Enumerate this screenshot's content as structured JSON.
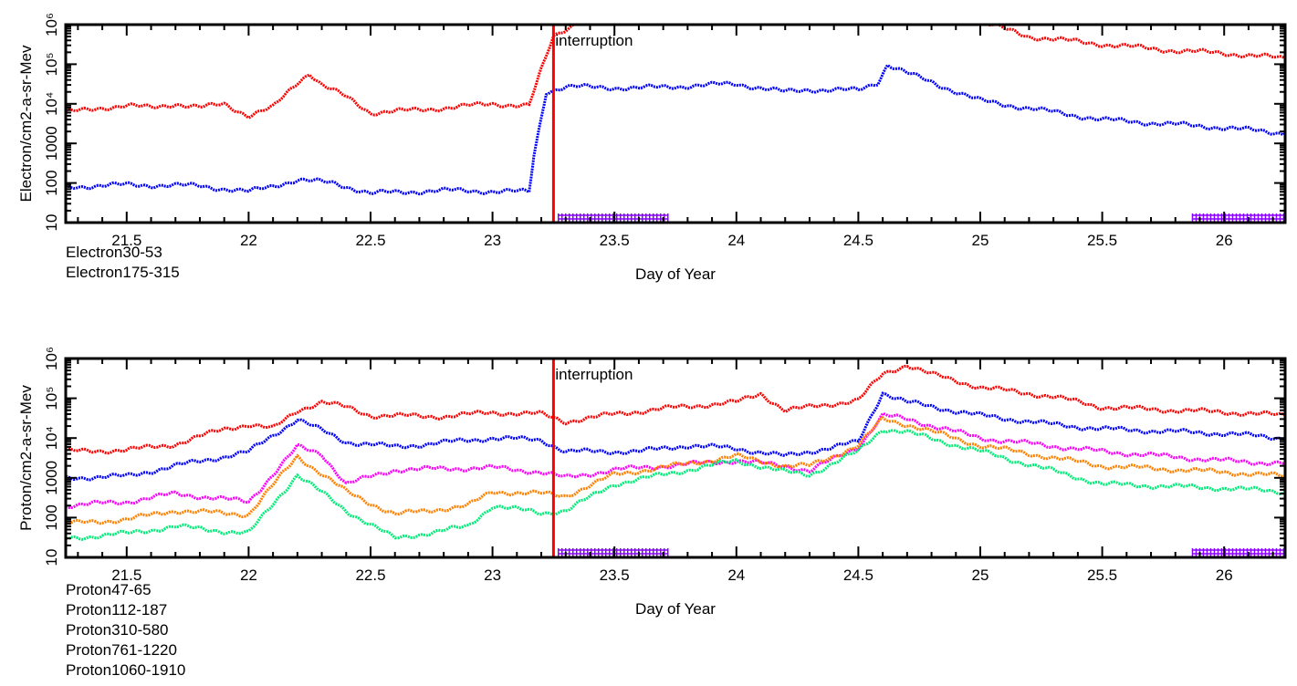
{
  "chart_data": [
    {
      "type": "scatter",
      "title": "",
      "xlabel": "Day of Year",
      "ylabel": "Electron/cm2-a-sr-Mev",
      "xlim": [
        21.25,
        26.25
      ],
      "ylim": [
        10,
        1000000
      ],
      "yscale": "log",
      "xticks": [
        "21.5",
        "22",
        "22.5",
        "23",
        "23.5",
        "24",
        "24.5",
        "25",
        "25.5",
        "26"
      ],
      "xtick_values": [
        21.5,
        22,
        22.5,
        23,
        23.5,
        24,
        24.5,
        25,
        25.5,
        26
      ],
      "yticks": [
        "10",
        "100",
        "1000",
        "10⁴",
        "10⁵",
        "10⁶"
      ],
      "annotation": {
        "text": "interruption",
        "x": 23.25,
        "color": "#ff0000"
      },
      "gaps": [
        [
          23.27,
          23.72
        ],
        [
          25.87,
          26.25
        ]
      ],
      "gap_color": "#8800ff",
      "series": [
        {
          "name": "Electron30-53",
          "color": "#ff0000",
          "x": [
            21.25,
            21.4,
            21.5,
            21.6,
            21.7,
            21.8,
            21.9,
            22.0,
            22.1,
            22.2,
            22.25,
            22.3,
            22.4,
            22.5,
            22.7,
            23.0,
            23.15,
            23.2,
            23.25,
            23.35,
            25.0,
            25.2,
            25.5,
            25.8,
            26.0,
            26.25
          ],
          "values": [
            6000,
            8000,
            9000,
            8000,
            10000,
            8000,
            10000,
            5000,
            8000,
            35000,
            60000,
            30000,
            15000,
            6000,
            7000,
            10000,
            9000,
            70000,
            500000,
            1200000,
            1200000,
            500000,
            320000,
            220000,
            190000,
            140000
          ]
        },
        {
          "name": "Electron175-315",
          "color": "#0000ff",
          "x": [
            21.25,
            21.5,
            21.8,
            22.0,
            22.2,
            22.35,
            22.5,
            22.8,
            23.15,
            23.17,
            23.22,
            23.3,
            23.6,
            24.0,
            24.2,
            24.3,
            24.5,
            24.58,
            24.62,
            24.7,
            25.0,
            25.5,
            26.0,
            26.25
          ],
          "values": [
            80,
            90,
            85,
            60,
            120,
            100,
            55,
            65,
            60,
            500,
            20000,
            27000,
            25000,
            32000,
            20000,
            23000,
            22000,
            35000,
            100000,
            60000,
            12000,
            4000,
            2500,
            1800
          ]
        }
      ]
    },
    {
      "type": "scatter",
      "title": "",
      "xlabel": "Day of Year",
      "ylabel": "Proton/cm2-a-sr-Mev",
      "xlim": [
        21.25,
        26.25
      ],
      "ylim": [
        10,
        1000000
      ],
      "yscale": "log",
      "xticks": [
        "21.5",
        "22",
        "22.5",
        "23",
        "23.5",
        "24",
        "24.5",
        "25",
        "25.5",
        "26"
      ],
      "xtick_values": [
        21.5,
        22,
        22.5,
        23,
        23.5,
        24,
        24.5,
        25,
        25.5,
        26
      ],
      "yticks": [
        "10",
        "100",
        "1000",
        "10⁴",
        "10⁵",
        "10⁶"
      ],
      "annotation": {
        "text": "interruption",
        "x": 23.25,
        "color": "#ff0000"
      },
      "gaps": [
        [
          23.27,
          23.72
        ],
        [
          25.87,
          26.25
        ]
      ],
      "gap_color": "#8800ff",
      "series": [
        {
          "name": "Proton47-65",
          "color": "#ff0000",
          "x": [
            21.25,
            21.5,
            21.7,
            21.9,
            22.0,
            22.1,
            22.2,
            22.3,
            22.4,
            22.5,
            22.8,
            23.0,
            23.2,
            23.3,
            23.5,
            23.7,
            24.0,
            24.1,
            24.2,
            24.3,
            24.5,
            24.6,
            24.7,
            24.8,
            25.0,
            25.3,
            25.5,
            25.8,
            26.0,
            26.25
          ],
          "values": [
            4600,
            5000,
            7000,
            17000,
            22000,
            17000,
            50000,
            80000,
            60000,
            37000,
            35000,
            44000,
            40000,
            26000,
            40000,
            55000,
            80000,
            130000,
            50000,
            60000,
            90000,
            400000,
            700000,
            400000,
            190000,
            110000,
            60000,
            50000,
            45000,
            37000
          ]
        },
        {
          "name": "Proton112-187",
          "color": "#0000ff",
          "x": [
            21.25,
            21.5,
            21.7,
            22.0,
            22.2,
            22.4,
            22.6,
            23.0,
            23.2,
            23.3,
            23.6,
            23.8,
            24.0,
            24.2,
            24.4,
            24.5,
            24.6,
            24.7,
            25.0,
            25.3,
            25.5,
            26.0,
            26.25
          ],
          "values": [
            1000,
            1100,
            2000,
            4500,
            30000,
            8000,
            6000,
            10000,
            9000,
            4600,
            4600,
            6500,
            5500,
            3500,
            6000,
            8000,
            140000,
            80000,
            37000,
            22000,
            17000,
            13000,
            10000
          ]
        },
        {
          "name": "Proton310-580",
          "color": "#ff00ff",
          "x": [
            21.25,
            21.5,
            21.7,
            22.0,
            22.2,
            22.3,
            22.4,
            22.6,
            23.0,
            23.2,
            23.3,
            23.5,
            24.0,
            24.2,
            24.3,
            24.5,
            24.6,
            24.7,
            25.0,
            25.5,
            26.0,
            26.25
          ],
          "values": [
            200,
            250,
            400,
            250,
            6000,
            4000,
            700,
            1600,
            1800,
            1400,
            1000,
            1600,
            2700,
            2000,
            1500,
            6000,
            37000,
            30000,
            10000,
            4600,
            2700,
            2300
          ]
        },
        {
          "name": "Proton761-1220",
          "color": "#ff8000",
          "x": [
            21.25,
            21.5,
            21.7,
            22.0,
            22.2,
            22.4,
            22.6,
            22.9,
            23.0,
            23.2,
            23.3,
            23.5,
            24.0,
            24.2,
            24.3,
            24.5,
            24.6,
            24.7,
            25.0,
            25.5,
            26.0,
            26.25
          ],
          "values": [
            70,
            90,
            150,
            120,
            3500,
            450,
            120,
            200,
            450,
            400,
            350,
            1200,
            3500,
            2000,
            2000,
            6500,
            30000,
            22000,
            6500,
            2000,
            1400,
            1100
          ]
        },
        {
          "name": "Proton1060-1910",
          "color": "#00ee77",
          "x": [
            21.25,
            21.5,
            21.7,
            22.0,
            22.2,
            22.4,
            22.6,
            22.9,
            23.0,
            23.2,
            23.3,
            23.5,
            24.0,
            24.2,
            24.3,
            24.5,
            24.6,
            24.7,
            25.0,
            25.5,
            26.0,
            26.25
          ],
          "values": [
            30,
            40,
            60,
            40,
            1200,
            150,
            30,
            60,
            200,
            130,
            150,
            700,
            2700,
            1400,
            1200,
            4600,
            17000,
            14000,
            4600,
            700,
            550,
            450
          ]
        }
      ]
    }
  ]
}
